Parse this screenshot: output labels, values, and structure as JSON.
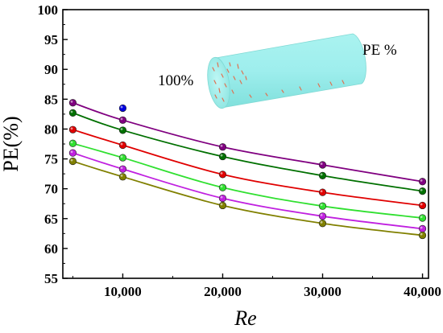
{
  "chart_data": {
    "type": "line",
    "xlabel": "Re",
    "ylabel": "PE(%)",
    "xlim": [
      4000,
      40600
    ],
    "ylim": [
      55,
      100
    ],
    "x_ticks": [
      10000,
      20000,
      30000,
      40000
    ],
    "x_tick_labels": [
      "10,000",
      "20,000",
      "30,000",
      "40,000"
    ],
    "y_ticks": [
      55,
      60,
      65,
      70,
      75,
      80,
      85,
      90,
      95,
      100
    ],
    "y_tick_labels": [
      "55",
      "60",
      "65",
      "70",
      "75",
      "80",
      "85",
      "90",
      "95",
      "100"
    ],
    "grid": false,
    "legend": "none",
    "x": [
      5000,
      10000,
      20000,
      30000,
      40000
    ],
    "series": [
      {
        "color": "#800080",
        "values": [
          84.4,
          81.5,
          77.0,
          74.0,
          71.2
        ]
      },
      {
        "color": "#007000",
        "values": [
          82.7,
          79.8,
          75.4,
          72.2,
          69.6
        ]
      },
      {
        "color": "#e00000",
        "values": [
          79.9,
          77.3,
          72.4,
          69.4,
          67.2
        ]
      },
      {
        "color": "#30e030",
        "values": [
          77.6,
          75.2,
          70.2,
          67.1,
          65.1
        ]
      },
      {
        "color": "#c020e0",
        "values": [
          76.0,
          73.3,
          68.4,
          65.4,
          63.3
        ]
      },
      {
        "color": "#808000",
        "values": [
          74.6,
          72.0,
          67.2,
          64.2,
          62.2
        ]
      }
    ],
    "extra_point": {
      "x": 10000,
      "y": 83.5,
      "color": "#0000e0"
    },
    "annotations": [
      "100%",
      "PE %"
    ]
  }
}
